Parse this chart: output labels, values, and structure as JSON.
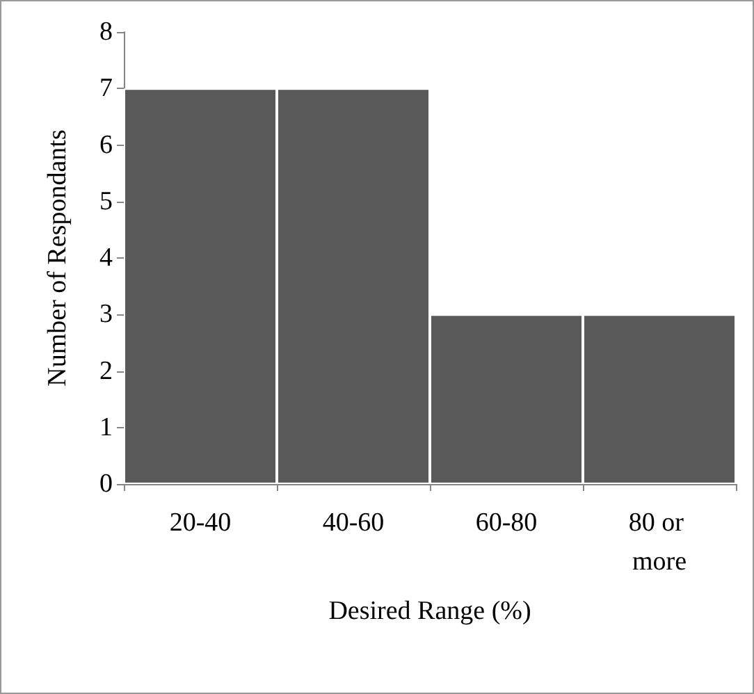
{
  "chart_data": {
    "type": "bar",
    "xlabel": "Desired Range (%)",
    "ylabel": "Number of Respondants",
    "categories": [
      "20-40",
      "40-60",
      "60-80",
      "80 or more"
    ],
    "values": [
      7,
      7,
      3,
      3
    ],
    "color": "#595959",
    "ylim": [
      0,
      8
    ],
    "yticks": [
      0,
      1,
      2,
      3,
      4,
      5,
      6,
      7,
      8
    ],
    "grid": false
  }
}
